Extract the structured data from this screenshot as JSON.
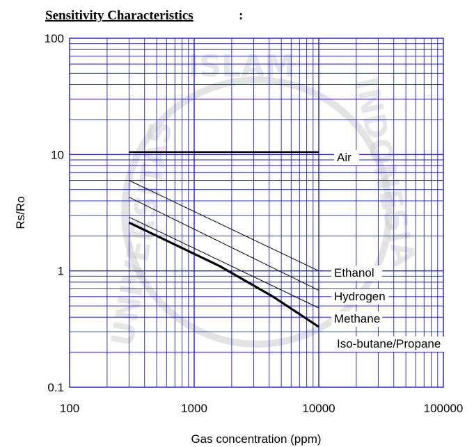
{
  "heading": "Sensitivity Characteristics",
  "heading_suffix": ":",
  "watermark": {
    "text_top": "ISLAM",
    "text_left": "UNIVERSITAS",
    "text_right": "INDONESIA"
  },
  "chart_data": {
    "type": "line",
    "title": "",
    "xlabel": "Gas concentration (ppm)",
    "ylabel": "Rs/Ro",
    "xscale": "log",
    "yscale": "log",
    "xlim": [
      100,
      100000
    ],
    "ylim": [
      0.1,
      100
    ],
    "x_ticks": [
      "100",
      "1000",
      "10000",
      "100000"
    ],
    "y_ticks": [
      "0.1",
      "1",
      "10",
      "100"
    ],
    "grid": true,
    "series": [
      {
        "name": "Air",
        "color": "#000000",
        "points": [
          [
            300,
            10.5
          ],
          [
            10000,
            10.5
          ]
        ]
      },
      {
        "name": "Ethanol",
        "color": "#000000",
        "points": [
          [
            300,
            6.0
          ],
          [
            10000,
            1.0
          ]
        ]
      },
      {
        "name": "Hydrogen",
        "color": "#000000",
        "points": [
          [
            300,
            4.3
          ],
          [
            10000,
            0.68
          ]
        ]
      },
      {
        "name": "Methane",
        "color": "#000000",
        "points": [
          [
            300,
            2.9
          ],
          [
            10000,
            0.48
          ]
        ]
      },
      {
        "name": "Iso-butane/Propane",
        "color": "#000000",
        "points": [
          [
            300,
            2.6
          ],
          [
            1600,
            1.1
          ],
          [
            4300,
            0.6
          ],
          [
            10000,
            0.33
          ]
        ]
      }
    ]
  }
}
